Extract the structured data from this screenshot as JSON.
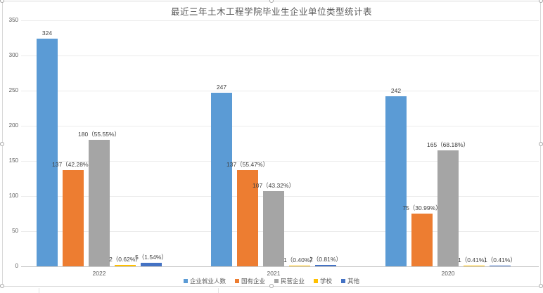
{
  "chart_data": {
    "type": "bar",
    "title": "最近三年土木工程学院毕业生企业单位类型统计表",
    "categories": [
      "2022",
      "2021",
      "2020"
    ],
    "series": [
      {
        "name": "企业就业人数",
        "color": "#5B9BD5",
        "values": [
          324,
          247,
          242
        ],
        "labels": [
          "324",
          "247",
          "242"
        ]
      },
      {
        "name": "国有企业",
        "color": "#ED7D31",
        "values": [
          137,
          137,
          75
        ],
        "labels": [
          "137（42.28%）",
          "137（55.47%）",
          "75（30.99%）"
        ]
      },
      {
        "name": "民营企业",
        "color": "#A5A5A5",
        "values": [
          180,
          107,
          165
        ],
        "labels": [
          "180（55.55%）",
          "107（43.32%）",
          "165（68.18%）"
        ]
      },
      {
        "name": "学校",
        "color": "#FFC000",
        "values": [
          2,
          1,
          1
        ],
        "labels": [
          "2（0.62%）",
          "1（0.40%）",
          "1（0.41%）"
        ]
      },
      {
        "name": "其他",
        "color": "#4472C4",
        "values": [
          5,
          2,
          1
        ],
        "labels": [
          "5（1.54%）",
          "2（0.81%）",
          "1（0.41%）"
        ]
      }
    ],
    "xlabel": "",
    "ylabel": "",
    "ylim": [
      0,
      350
    ],
    "yticks": [
      0,
      50,
      100,
      150,
      200,
      250,
      300,
      350
    ],
    "grid": true,
    "legend_position": "bottom"
  },
  "colors": {
    "title_text": "#595959",
    "axis_text": "#595959",
    "data_label_text": "#404040",
    "grid_line": "#ebebeb",
    "axis_line": "#c9c9c9",
    "frame_border": "#d8d8d8"
  }
}
